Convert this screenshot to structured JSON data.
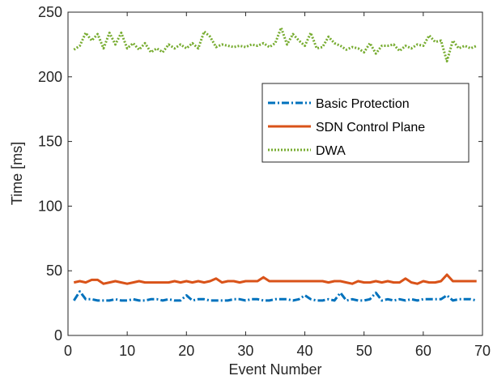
{
  "chart_data": {
    "type": "line",
    "title": "",
    "xlabel": "Event Number",
    "ylabel": "Time [ms]",
    "xlim": [
      0,
      70
    ],
    "ylim": [
      0,
      250
    ],
    "xticks": [
      0,
      10,
      20,
      30,
      40,
      50,
      60,
      70
    ],
    "yticks": [
      0,
      50,
      100,
      150,
      200,
      250
    ],
    "grid": false,
    "legend_position": "top-right",
    "x": [
      1,
      2,
      3,
      4,
      5,
      6,
      7,
      8,
      9,
      10,
      11,
      12,
      13,
      14,
      15,
      16,
      17,
      18,
      19,
      20,
      21,
      22,
      23,
      24,
      25,
      26,
      27,
      28,
      29,
      30,
      31,
      32,
      33,
      34,
      35,
      36,
      37,
      38,
      39,
      40,
      41,
      42,
      43,
      44,
      45,
      46,
      47,
      48,
      49,
      50,
      51,
      52,
      53,
      54,
      55,
      56,
      57,
      58,
      59,
      60,
      61,
      62,
      63,
      64,
      65,
      66,
      67,
      68,
      69
    ],
    "series": [
      {
        "name": "Basic Protection",
        "color": "#0072BD",
        "style": "dashdot",
        "values": [
          27,
          34,
          28,
          28,
          27,
          27,
          27,
          28,
          27,
          27,
          28,
          27,
          27,
          28,
          28,
          27,
          28,
          27,
          27,
          31,
          27,
          28,
          28,
          27,
          27,
          27,
          27,
          28,
          28,
          27,
          28,
          28,
          27,
          27,
          28,
          28,
          28,
          27,
          28,
          31,
          28,
          27,
          27,
          28,
          27,
          33,
          27,
          28,
          27,
          27,
          28,
          33,
          27,
          28,
          27,
          28,
          27,
          28,
          27,
          28,
          28,
          28,
          28,
          31,
          27,
          28,
          28,
          28,
          27
        ]
      },
      {
        "name": "SDN Control Plane",
        "color": "#D95319",
        "style": "solid",
        "values": [
          41,
          42,
          41,
          43,
          43,
          40,
          41,
          42,
          41,
          40,
          41,
          42,
          41,
          41,
          41,
          41,
          41,
          42,
          41,
          42,
          41,
          42,
          41,
          42,
          44,
          41,
          42,
          42,
          41,
          42,
          42,
          42,
          45,
          42,
          42,
          42,
          42,
          42,
          42,
          42,
          42,
          42,
          42,
          41,
          42,
          42,
          41,
          40,
          42,
          41,
          41,
          42,
          41,
          42,
          41,
          41,
          44,
          41,
          40,
          42,
          41,
          41,
          42,
          47,
          42,
          42,
          42,
          42,
          42
        ]
      },
      {
        "name": "DWA",
        "color": "#77AC30",
        "style": "dotted",
        "values": [
          221,
          224,
          234,
          228,
          233,
          222,
          234,
          225,
          234,
          222,
          226,
          221,
          226,
          219,
          222,
          219,
          225,
          222,
          225,
          222,
          226,
          222,
          235,
          231,
          223,
          225,
          224,
          223,
          224,
          223,
          225,
          224,
          226,
          223,
          226,
          238,
          225,
          233,
          228,
          224,
          234,
          222,
          223,
          231,
          226,
          224,
          221,
          223,
          222,
          219,
          226,
          218,
          224,
          224,
          225,
          220,
          224,
          222,
          225,
          224,
          232,
          227,
          228,
          212,
          228,
          222,
          224,
          222,
          224
        ]
      }
    ]
  }
}
